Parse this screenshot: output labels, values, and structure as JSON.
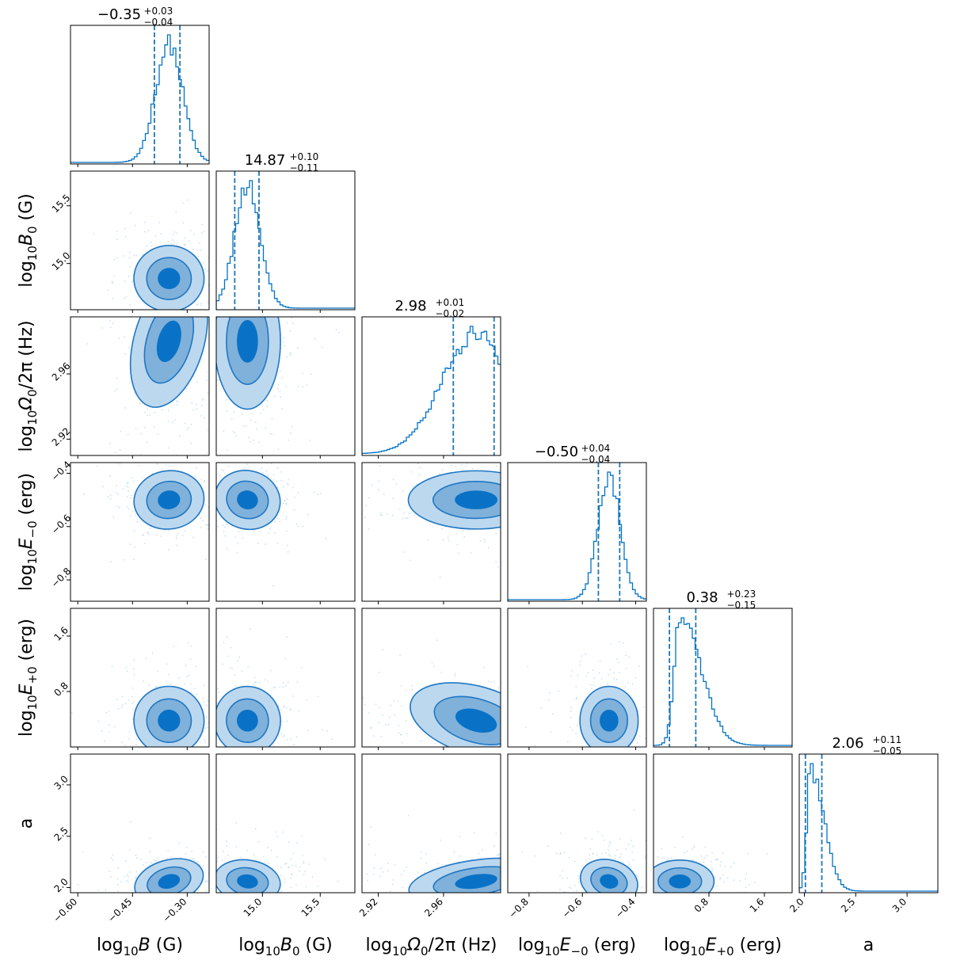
{
  "chart_data": {
    "type": "corner",
    "color": "#0072c6",
    "params": [
      {
        "name": "logB",
        "label": "log10B (G)",
        "lsub": "10",
        "lvar": "B",
        "lpost": " (G)",
        "range": [
          -0.62,
          -0.24
        ],
        "ticks": [
          -0.6,
          -0.45,
          -0.3
        ],
        "ticklabels": [
          "−0.60",
          "−0.45",
          "−0.30"
        ],
        "median": -0.35,
        "lo": -0.39,
        "hi": -0.32,
        "sd": 0.037,
        "skew": 0,
        "title": "−0.35",
        "plus": "+0.03",
        "minus": "−0.04"
      },
      {
        "name": "logB0",
        "label": "log10B0 (G)",
        "lsub": "10",
        "lvar": "B",
        "lvsub": "0",
        "lpost": " (G)",
        "range": [
          14.6,
          15.8
        ],
        "ticks": [
          15.0,
          15.5
        ],
        "ticklabels": [
          "15.0",
          "15.5"
        ],
        "median": 14.87,
        "lo": 14.76,
        "hi": 14.97,
        "sd": 0.11,
        "skew": 0,
        "title": "14.87",
        "plus": "+0.10",
        "minus": "−0.11"
      },
      {
        "name": "logOmega0",
        "label": "log10Ω0/2π (Hz)",
        "lsub": "10",
        "lvar": "Ω",
        "lvsub": "0",
        "lpost": "/2π (Hz)",
        "range": [
          2.91,
          2.995
        ],
        "ticks": [
          2.92,
          2.96
        ],
        "ticklabels": [
          "2.92",
          "2.96"
        ],
        "median": 2.98,
        "lo": 2.966,
        "hi": 2.991,
        "sd": 0.016,
        "skew": -1,
        "title": "2.98",
        "plus": "+0.01",
        "minus": "−0.02"
      },
      {
        "name": "logEm0",
        "label": "log10E−0 (erg)",
        "lsub": "10",
        "lvar": "E",
        "lvsub": "−0",
        "lpost": " (erg)",
        "range": [
          -0.88,
          -0.36
        ],
        "ticks": [
          -0.8,
          -0.6,
          -0.4
        ],
        "ticklabels": [
          "−0.8",
          "−0.6",
          "−0.4"
        ],
        "median": -0.5,
        "lo": -0.54,
        "hi": -0.46,
        "sd": 0.042,
        "skew": 0,
        "title": "−0.50",
        "plus": "+0.04",
        "minus": "−0.04"
      },
      {
        "name": "logEp0",
        "label": "log10E+0 (erg)",
        "lsub": "10",
        "lvar": "E",
        "lvsub": "+0",
        "lpost": " (erg)",
        "range": [
          0.0,
          2.0
        ],
        "ticks": [
          0.8,
          1.6
        ],
        "ticklabels": [
          "0.8",
          "1.6"
        ],
        "median": 0.38,
        "lo": 0.23,
        "hi": 0.61,
        "sd": 0.19,
        "skew": 1,
        "title": "0.38",
        "plus": "+0.23",
        "minus": "−0.15"
      },
      {
        "name": "a",
        "label": "a",
        "range": [
          1.95,
          3.3
        ],
        "ticks": [
          2.0,
          2.5,
          3.0
        ],
        "ticklabels": [
          "2.0",
          "2.5",
          "3.0"
        ],
        "median": 2.06,
        "lo": 2.01,
        "hi": 2.17,
        "sd": 0.08,
        "skew": 1,
        "title": "2.06",
        "plus": "+0.11",
        "minus": "−0.05"
      }
    ]
  }
}
